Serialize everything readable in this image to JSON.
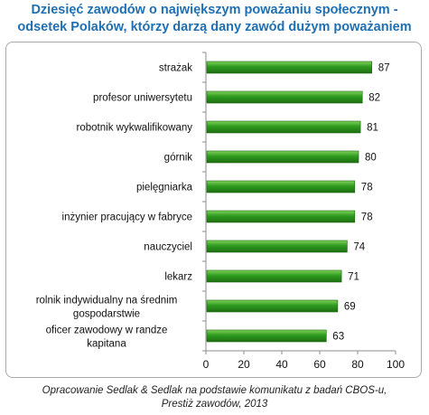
{
  "title_line1": "Dziesięć zawodów o największym poważaniu społecznym -",
  "title_line2": "odsetek Polaków, którzy darzą dany zawód dużym poważaniem",
  "source_line1": "Opracowanie Sedlak & Sedlak na podstawie komunikatu z badań CBOS-u,",
  "source_line2": "Prestiż zawodów, 2013",
  "chart_data": {
    "type": "bar",
    "orientation": "horizontal",
    "categories": [
      "strażak",
      "profesor uniwersytetu",
      "robotnik wykwalifikowany",
      "górnik",
      "pielęgniarka",
      "inżynier pracujący w fabryce",
      "nauczyciel",
      "lekarz",
      "rolnik indywidualny na średnim gospodarstwie",
      "oficer zawodowy w randze kapitana"
    ],
    "values": [
      87,
      82,
      81,
      80,
      78,
      78,
      74,
      71,
      69,
      63
    ],
    "xlim": [
      0,
      100
    ],
    "xticks": [
      "0",
      "20",
      "40",
      "60",
      "80",
      "100"
    ],
    "data_labels": true,
    "grid": false,
    "bar_color": "#2e8b1f"
  }
}
